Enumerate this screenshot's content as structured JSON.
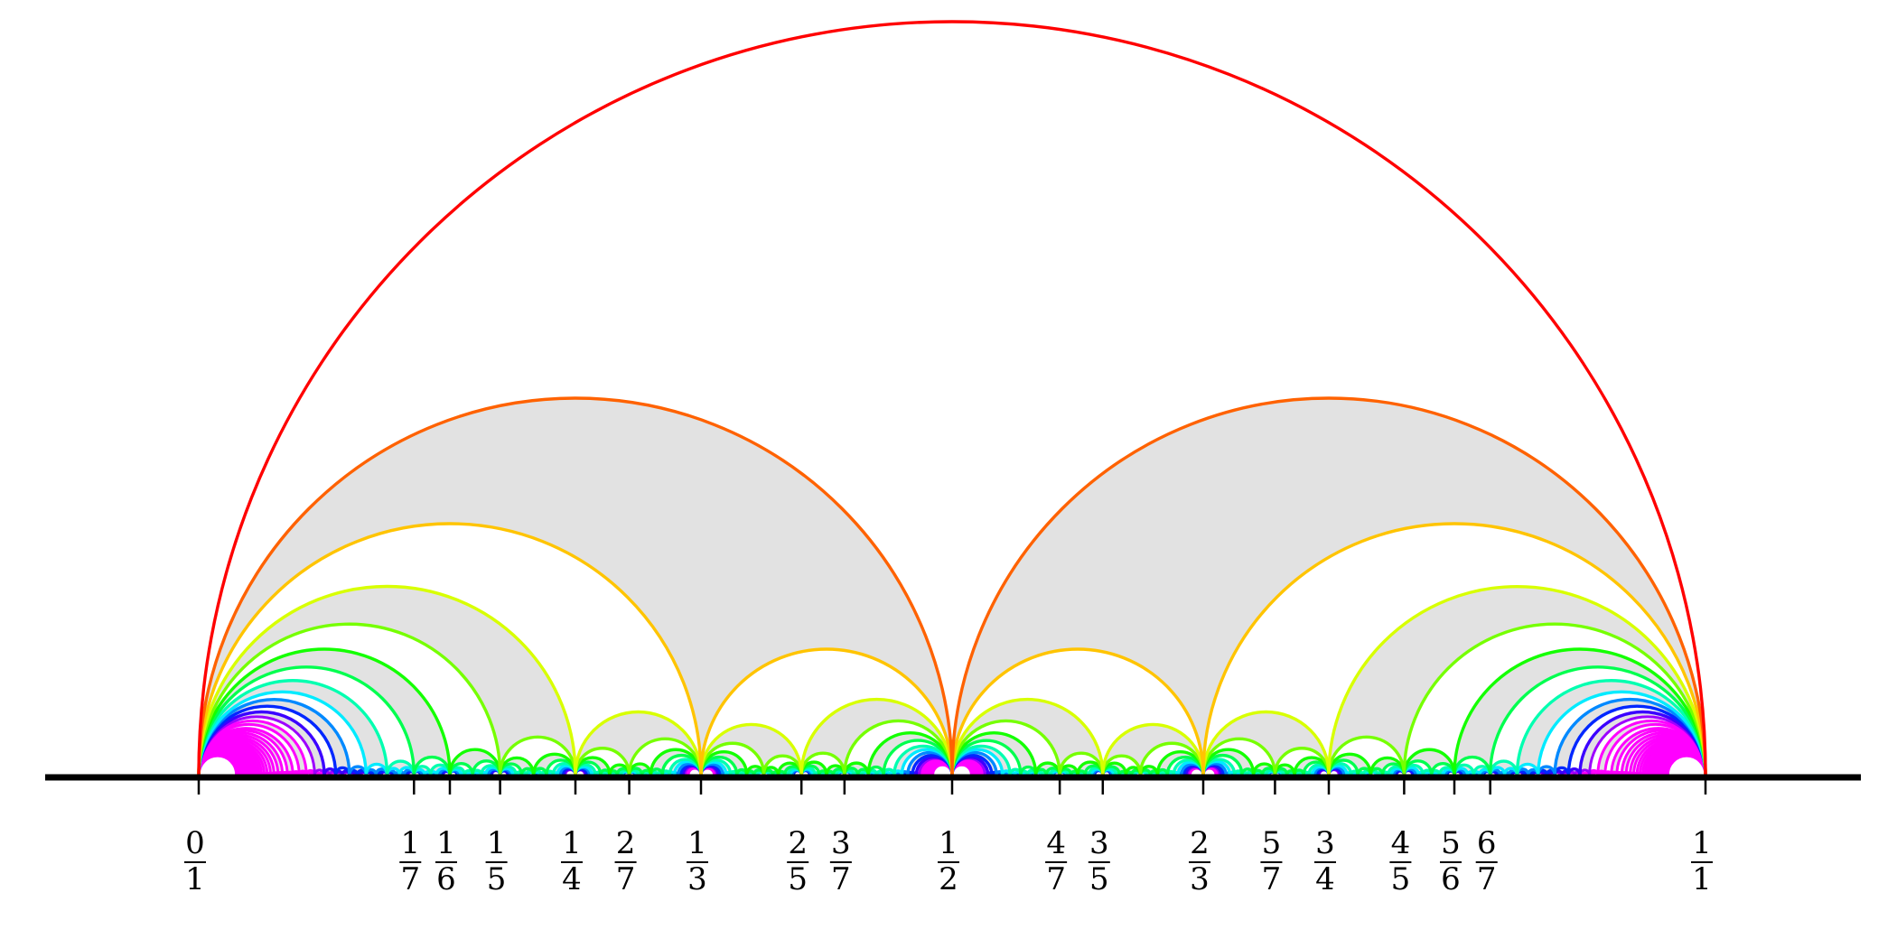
{
  "diagram": {
    "fill_color": "#e2e2e2",
    "axis_color": "#000000",
    "max_denominator": 40,
    "interval": [
      0,
      1
    ],
    "labels": [
      {
        "num": "0",
        "den": "1",
        "value": 0
      },
      {
        "num": "1",
        "den": "7",
        "value": 0.142857
      },
      {
        "num": "1",
        "den": "6",
        "value": 0.166667
      },
      {
        "num": "1",
        "den": "5",
        "value": 0.2
      },
      {
        "num": "1",
        "den": "4",
        "value": 0.25
      },
      {
        "num": "2",
        "den": "7",
        "value": 0.285714
      },
      {
        "num": "1",
        "den": "3",
        "value": 0.333333
      },
      {
        "num": "2",
        "den": "5",
        "value": 0.4
      },
      {
        "num": "3",
        "den": "7",
        "value": 0.428571
      },
      {
        "num": "1",
        "den": "2",
        "value": 0.5
      },
      {
        "num": "4",
        "den": "7",
        "value": 0.571429
      },
      {
        "num": "3",
        "den": "5",
        "value": 0.6
      },
      {
        "num": "2",
        "den": "3",
        "value": 0.666667
      },
      {
        "num": "5",
        "den": "7",
        "value": 0.714286
      },
      {
        "num": "3",
        "den": "4",
        "value": 0.75
      },
      {
        "num": "4",
        "den": "5",
        "value": 0.8
      },
      {
        "num": "5",
        "den": "6",
        "value": 0.833333
      },
      {
        "num": "6",
        "den": "7",
        "value": 0.857143
      },
      {
        "num": "1",
        "den": "1",
        "value": 1
      }
    ]
  }
}
